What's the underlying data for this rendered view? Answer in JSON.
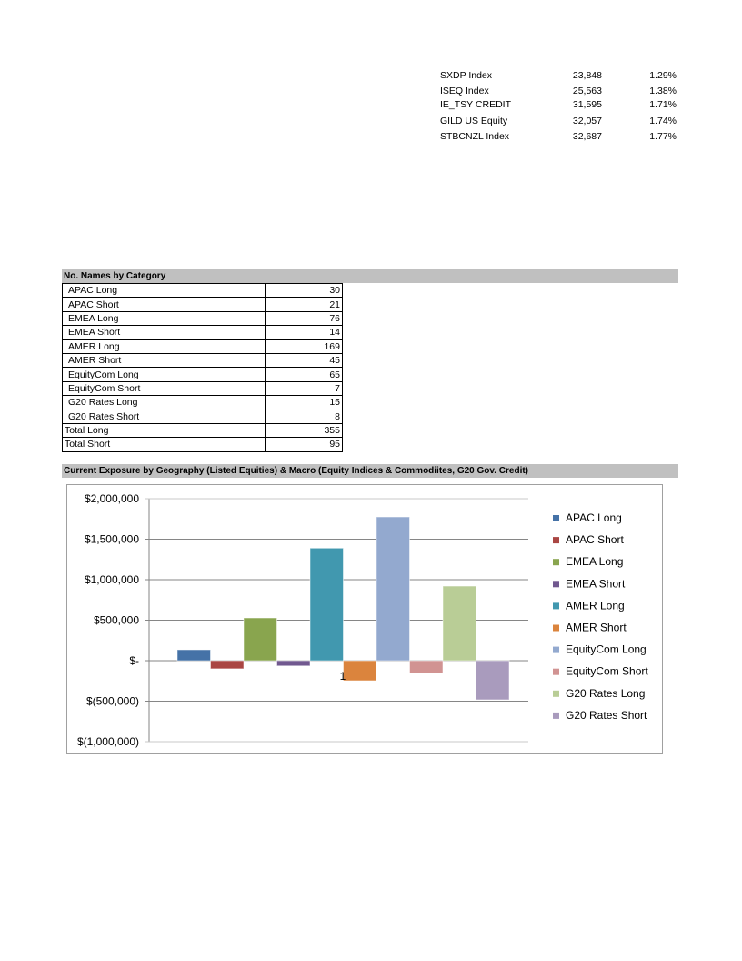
{
  "ticker_table": [
    {
      "name": "SXDP Index",
      "value": "23,848",
      "pct": "1.29%"
    },
    {
      "name": "ISEQ Index",
      "value": "25,563",
      "pct": "1.38%"
    },
    {
      "name": "IE_TSY CREDIT",
      "value": "31,595",
      "pct": "1.71%"
    },
    {
      "name": "GILD US Equity",
      "value": "32,057",
      "pct": "1.74%"
    },
    {
      "name": "STBCNZL Index",
      "value": "32,687",
      "pct": "1.77%"
    }
  ],
  "names_section": {
    "title": "No. Names by Category",
    "rows": [
      {
        "label": "APAC Long",
        "value": "30"
      },
      {
        "label": "APAC Short",
        "value": "21"
      },
      {
        "label": "EMEA Long",
        "value": "76"
      },
      {
        "label": "EMEA Short",
        "value": "14"
      },
      {
        "label": "AMER Long",
        "value": "169"
      },
      {
        "label": "AMER Short",
        "value": "45"
      },
      {
        "label": "EquityCom Long",
        "value": "65"
      },
      {
        "label": "EquityCom Short",
        "value": "7"
      },
      {
        "label": "G20 Rates Long",
        "value": "15"
      },
      {
        "label": "G20 Rates Short",
        "value": "8"
      }
    ],
    "totals": [
      {
        "label": "Total Long",
        "value": "355"
      },
      {
        "label": "Total Short",
        "value": "95"
      }
    ]
  },
  "exposure_section": {
    "title": "Current Exposure by Geography (Listed Equities) & Macro (Equity Indices & Commodiites, G20 Gov. Credit)"
  },
  "chart_data": {
    "type": "bar",
    "categories": [
      "1"
    ],
    "series": [
      {
        "name": "APAC Long",
        "values": [
          135000
        ],
        "color": "#4572a7"
      },
      {
        "name": "APAC Short",
        "values": [
          -100000
        ],
        "color": "#aa4643"
      },
      {
        "name": "EMEA Long",
        "values": [
          528000
        ],
        "color": "#89a54e"
      },
      {
        "name": "EMEA Short",
        "values": [
          -65000
        ],
        "color": "#71588f"
      },
      {
        "name": "AMER Long",
        "values": [
          1390000
        ],
        "color": "#4198af"
      },
      {
        "name": "AMER Short",
        "values": [
          -247000
        ],
        "color": "#db843d"
      },
      {
        "name": "EquityCom Long",
        "values": [
          1775000
        ],
        "color": "#93a9cf"
      },
      {
        "name": "EquityCom Short",
        "values": [
          -157000
        ],
        "color": "#d19392"
      },
      {
        "name": "G20 Rates Long",
        "values": [
          921000
        ],
        "color": "#b9cd96"
      },
      {
        "name": "G20 Rates Short",
        "values": [
          -483000
        ],
        "color": "#a99bbd"
      }
    ],
    "ylim": [
      -1000000,
      2000000
    ],
    "yticks": [
      2000000,
      1500000,
      1000000,
      500000,
      0,
      -500000,
      -1000000
    ],
    "ytick_labels": [
      "$2,000,000",
      "$1,500,000",
      "$1,000,000",
      "$500,000",
      "$-",
      "$(500,000)",
      "$(1,000,000)"
    ],
    "grid": true,
    "legend": "right"
  }
}
